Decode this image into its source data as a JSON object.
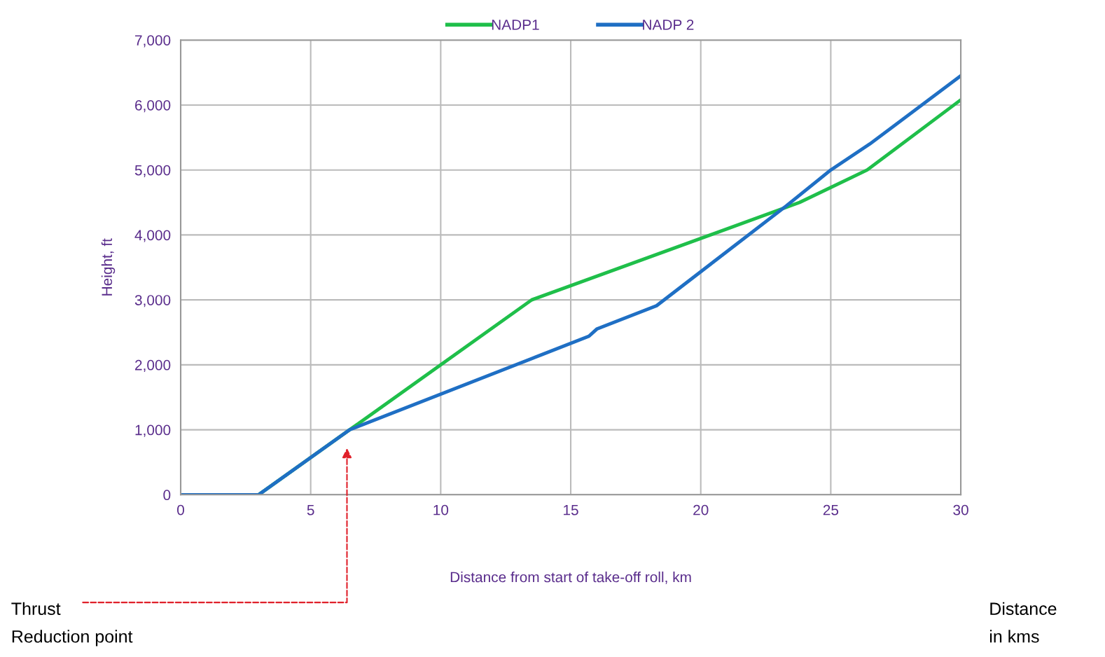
{
  "chart_data": {
    "type": "line",
    "xlabel": "Distance from start of take-off roll, km",
    "ylabel": "Height, ft",
    "xlim": [
      0,
      30
    ],
    "xticks": [
      0,
      5,
      10,
      15,
      20,
      25,
      30
    ],
    "ylim": [
      0,
      7000
    ],
    "yticks": [
      {
        "value": 0,
        "label": "0"
      },
      {
        "value": 1000,
        "label": "1,000"
      },
      {
        "value": 2000,
        "label": "2,000"
      },
      {
        "value": 3000,
        "label": "3,000"
      },
      {
        "value": 4000,
        "label": "4,000"
      },
      {
        "value": 5000,
        "label": "5,000"
      },
      {
        "value": 6000,
        "label": "6,000"
      },
      {
        "value": 7000,
        "label": "7,000"
      }
    ],
    "grid": true,
    "legend": "top",
    "marker": "none",
    "line_style": "solid",
    "series": [
      {
        "name": "NADP1",
        "color": "#1fbf4a",
        "x": [
          0,
          3,
          6.5,
          13.5,
          23.8,
          26.4,
          30
        ],
        "values": [
          0,
          0,
          1000,
          3000,
          4500,
          5000,
          6080
        ]
      },
      {
        "name": "NADP 2",
        "color": "#1f6fc4",
        "x": [
          0,
          3,
          6.5,
          15.7,
          16,
          18.3,
          23.3,
          25,
          26.5,
          30
        ],
        "values": [
          0,
          0,
          1000,
          2440,
          2550,
          2910,
          4450,
          5000,
          5400,
          6450
        ]
      }
    ],
    "annotations": [
      "Thrust\nReduction point",
      "Distance\nin kms"
    ]
  }
}
